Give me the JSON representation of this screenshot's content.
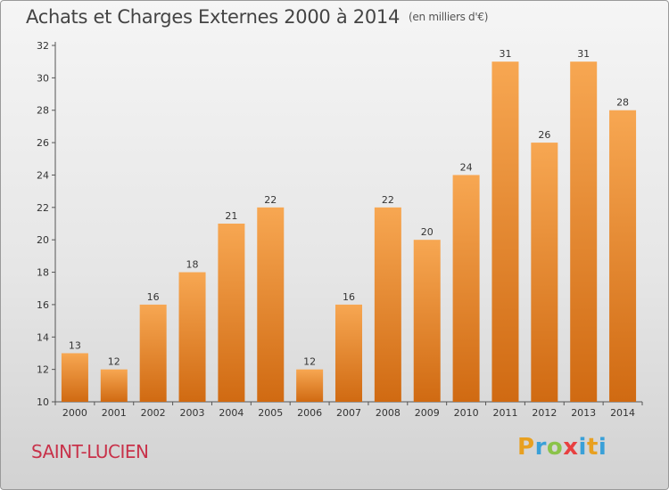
{
  "header": {
    "title": "Achats et Charges Externes 2000 à 2014",
    "unit": "(en milliers d'€)"
  },
  "footer": {
    "place": "SAINT-LUCIEN",
    "logo_letters": [
      "P",
      "r",
      "o",
      "x",
      "i",
      "t",
      "i"
    ],
    "logo_colors": [
      "#e8a020",
      "#3aa0d8",
      "#8bc34a",
      "#e84040",
      "#3aa0d8",
      "#e8a020",
      "#3aa0d8"
    ]
  },
  "chart_data": {
    "type": "bar",
    "title": "Achats et Charges Externes 2000 à 2014",
    "subtitle": "(en milliers d'€)",
    "categories": [
      "2000",
      "2001",
      "2002",
      "2003",
      "2004",
      "2005",
      "2006",
      "2007",
      "2008",
      "2009",
      "2010",
      "2011",
      "2012",
      "2013",
      "2014"
    ],
    "values": [
      13,
      12,
      16,
      18,
      21,
      22,
      12,
      16,
      22,
      20,
      24,
      31,
      26,
      31,
      28
    ],
    "ylim": [
      10,
      32
    ],
    "yticks": [
      10,
      12,
      14,
      16,
      18,
      20,
      22,
      24,
      26,
      28,
      30,
      32
    ],
    "xlabel": "",
    "ylabel": "",
    "bar_color_top": "#f7a752",
    "bar_color_bottom": "#d06a12",
    "grid": false,
    "legend": "none"
  }
}
